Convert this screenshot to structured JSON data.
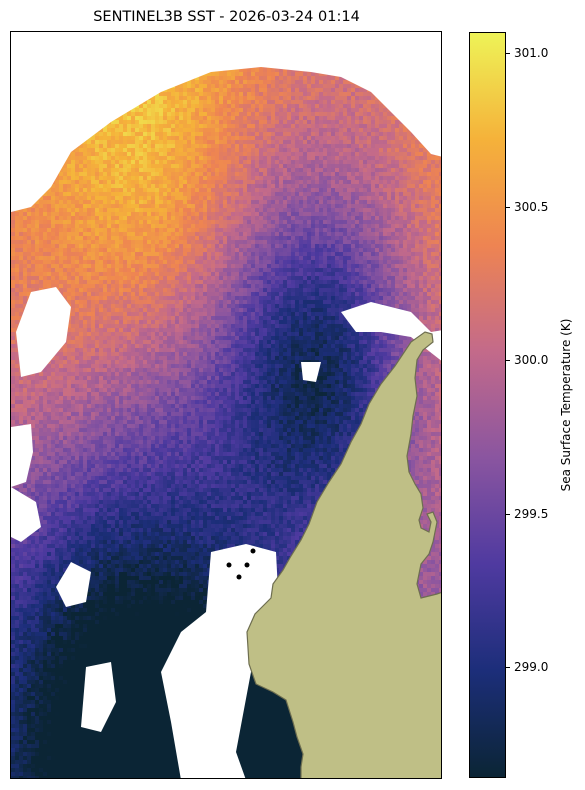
{
  "title": "SENTINEL3B SST - 2026-03-24 01:14",
  "colorbar": {
    "label": "Sea Surface Temperature (K)",
    "min": 298.64,
    "max": 301.07,
    "ticks": [
      {
        "value": 299.0,
        "label": "299.0"
      },
      {
        "value": 299.5,
        "label": "299.5"
      },
      {
        "value": 300.0,
        "label": "300.0"
      },
      {
        "value": 300.5,
        "label": "300.5"
      },
      {
        "value": 301.0,
        "label": "301.0"
      }
    ],
    "colormap": [
      "#0b2535",
      "#1c2e7a",
      "#4f3aa0",
      "#8a55a0",
      "#c36a8a",
      "#ee8452",
      "#f5b23a",
      "#eef357"
    ]
  },
  "map": {
    "land_color": "#bfbf86",
    "coast_color": "#6e6e50",
    "no_data_color": "#ffffff",
    "point_color": "#000000"
  }
}
